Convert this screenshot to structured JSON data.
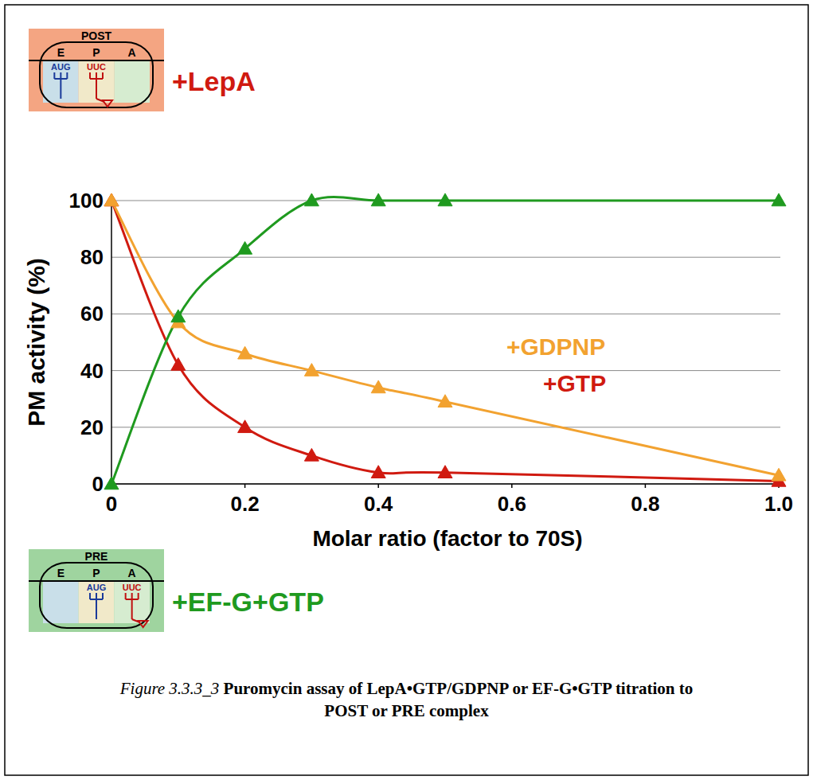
{
  "chart_data": {
    "type": "line",
    "title": "Puromycin assay of LepA•GTP/GDPNP or EF-G•GTP titration to POST or PRE complex",
    "caption_label": "Figure 3.3.3_3",
    "x_label": "Molar ratio (factor to 70S)",
    "y_label": "PM activity (%)",
    "x": [
      0,
      0.1,
      0.2,
      0.3,
      0.4,
      0.5,
      1.0
    ],
    "xlim": [
      0,
      1
    ],
    "xticks": [
      0,
      0.2,
      0.4,
      0.6,
      0.8,
      {
        "value": 1,
        "label": "1.0"
      }
    ],
    "ylim": [
      0,
      100
    ],
    "yticks": [
      0,
      20,
      40,
      60,
      80,
      100
    ],
    "grid": true,
    "line_style": "solid",
    "series": [
      {
        "name": "+GTP",
        "color": "#d01a10",
        "marker": "triangle",
        "values": [
          100,
          42,
          20,
          10,
          4,
          4,
          1
        ]
      },
      {
        "name": "+GDPNP",
        "color": "#f2a230",
        "marker": "triangle",
        "values": [
          100,
          57,
          46,
          40,
          34,
          29,
          3
        ]
      },
      {
        "name": "+EF-G+GTP",
        "color": "#1f9a1f",
        "marker": "triangle",
        "values": [
          0,
          59,
          83,
          100,
          100,
          100,
          100
        ]
      }
    ],
    "insets": [
      {
        "title": "POST",
        "sites": [
          "E",
          "P",
          "A"
        ],
        "codons": [
          "AUG",
          "UUC"
        ],
        "trna_sites": [
          "E",
          "P"
        ],
        "label": "+LepA"
      },
      {
        "title": "PRE",
        "sites": [
          "E",
          "P",
          "A"
        ],
        "codons": [
          "AUG",
          "UUC"
        ],
        "trna_sites": [
          "P",
          "A"
        ]
      }
    ]
  }
}
